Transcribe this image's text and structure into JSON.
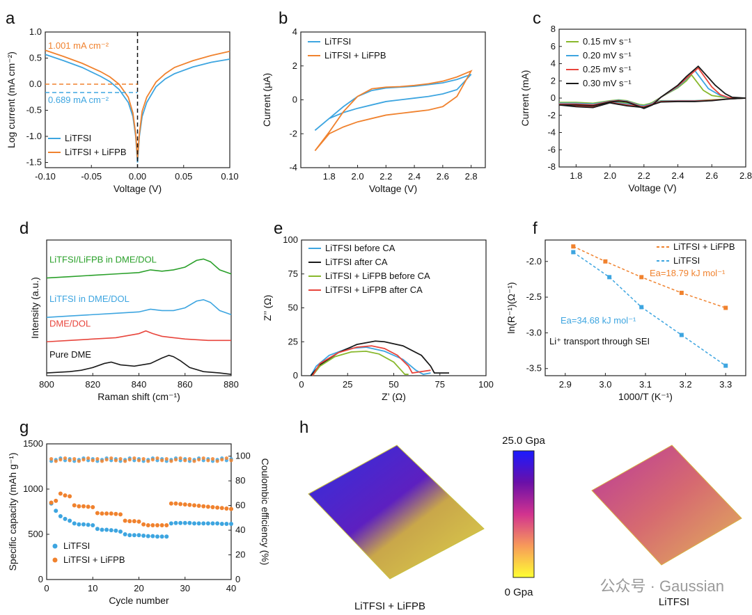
{
  "colors": {
    "blue": "#3da5e0",
    "orange": "#f0822e",
    "black": "#1a1a1a",
    "green": "#2aa02a",
    "red": "#e8453c",
    "lime": "#88b82c",
    "lightblue": "#3da5e0"
  },
  "panel_labels": [
    "a",
    "b",
    "c",
    "d",
    "e",
    "f",
    "g",
    "h"
  ],
  "chart_data": [
    {
      "panel": "a",
      "type": "line",
      "xlabel": "Voltage (V)",
      "ylabel": "Log current (mA cm⁻²)",
      "xlim": [
        -0.1,
        0.1
      ],
      "ylim": [
        -1.6,
        1.0
      ],
      "xticks": [
        "-0.10",
        "-0.05",
        "0.00",
        "0.05",
        "0.10"
      ],
      "yticks": [
        "-1.5",
        "-1.0",
        "-0.5",
        "0.0",
        "0.5",
        "1.0"
      ],
      "annotations": [
        "1.001 mA cm⁻²",
        "0.689 mA cm⁻²"
      ],
      "series": [
        {
          "name": "LiTFSI",
          "x": [
            -0.1,
            -0.08,
            -0.06,
            -0.04,
            -0.03,
            -0.02,
            -0.01,
            -0.005,
            -0.002,
            0.0,
            0.002,
            0.005,
            0.01,
            0.02,
            0.03,
            0.04,
            0.06,
            0.08,
            0.1
          ],
          "y": [
            0.57,
            0.45,
            0.32,
            0.15,
            0.05,
            -0.1,
            -0.35,
            -0.62,
            -1.0,
            -1.5,
            -1.0,
            -0.62,
            -0.35,
            -0.05,
            0.1,
            0.2,
            0.33,
            0.42,
            0.48
          ]
        },
        {
          "name": "LiTFSI + LiFPB",
          "x": [
            -0.1,
            -0.08,
            -0.06,
            -0.04,
            -0.03,
            -0.02,
            -0.01,
            -0.005,
            -0.002,
            0.0,
            0.002,
            0.005,
            0.01,
            0.02,
            0.03,
            0.04,
            0.06,
            0.08,
            0.1
          ],
          "y": [
            0.65,
            0.53,
            0.4,
            0.24,
            0.14,
            0.0,
            -0.25,
            -0.55,
            -0.95,
            -1.42,
            -0.95,
            -0.52,
            -0.25,
            0.04,
            0.2,
            0.32,
            0.45,
            0.55,
            0.63
          ]
        }
      ]
    },
    {
      "panel": "b",
      "type": "line",
      "xlabel": "Voltage (V)",
      "ylabel": "Current (μA)",
      "xlim": [
        1.6,
        2.9
      ],
      "ylim": [
        -4,
        4
      ],
      "xticks": [
        "1.8",
        "2.0",
        "2.2",
        "2.4",
        "2.6",
        "2.8"
      ],
      "yticks": [
        "-4",
        "-2",
        "0",
        "2",
        "4"
      ],
      "series": [
        {
          "name": "LiTFSI",
          "x": [
            1.7,
            1.8,
            1.9,
            2.0,
            2.1,
            2.2,
            2.3,
            2.4,
            2.5,
            2.6,
            2.7,
            2.8,
            2.7,
            2.6,
            2.5,
            2.4,
            2.3,
            2.2,
            2.1,
            2.0,
            1.9,
            1.8,
            1.7
          ],
          "y": [
            -1.8,
            -1.1,
            -0.4,
            0.2,
            0.55,
            0.7,
            0.75,
            0.8,
            0.9,
            1.0,
            1.2,
            1.5,
            0.6,
            0.35,
            0.2,
            0.1,
            0.0,
            -0.1,
            -0.3,
            -0.5,
            -0.75,
            -1.1,
            -1.8
          ]
        },
        {
          "name": "LiTFSI + LiFPB",
          "x": [
            1.7,
            1.8,
            1.9,
            2.0,
            2.1,
            2.2,
            2.3,
            2.4,
            2.5,
            2.6,
            2.7,
            2.8,
            2.7,
            2.6,
            2.5,
            2.4,
            2.3,
            2.2,
            2.1,
            2.0,
            1.9,
            1.8,
            1.7
          ],
          "y": [
            -3.0,
            -1.9,
            -0.7,
            0.2,
            0.65,
            0.75,
            0.78,
            0.85,
            0.95,
            1.1,
            1.35,
            1.7,
            0.2,
            -0.4,
            -0.6,
            -0.7,
            -0.8,
            -0.9,
            -1.1,
            -1.3,
            -1.6,
            -2.0,
            -3.0
          ]
        }
      ]
    },
    {
      "panel": "c",
      "type": "line",
      "xlabel": "Voltage (V)",
      "ylabel": "Current (mA)",
      "xlim": [
        1.7,
        2.8
      ],
      "ylim": [
        -8,
        8
      ],
      "xticks": [
        "1.8",
        "2.0",
        "2.2",
        "2.4",
        "2.6",
        "2.8"
      ],
      "yticks": [
        "-8",
        "-6",
        "-4",
        "-2",
        "0",
        "2",
        "4",
        "6",
        "8"
      ],
      "series": [
        {
          "name": "0.15 mV s⁻¹",
          "x": [
            1.7,
            1.8,
            1.9,
            2.0,
            2.05,
            2.1,
            2.2,
            2.25,
            2.3,
            2.4,
            2.45,
            2.48,
            2.55,
            2.6,
            2.7,
            2.8,
            2.7,
            2.6,
            2.5,
            2.4,
            2.3,
            2.2,
            2.1,
            2.0,
            1.9,
            1.8,
            1.7
          ],
          "y": [
            -0.5,
            -0.5,
            -0.6,
            -0.3,
            -0.2,
            -0.3,
            -0.9,
            -0.5,
            0.1,
            1.2,
            2.0,
            2.7,
            0.9,
            0.3,
            0.0,
            0.0,
            -0.1,
            -0.2,
            -0.3,
            -0.3,
            -0.3,
            -0.8,
            -0.6,
            -0.4,
            -0.8,
            -0.7,
            -0.5
          ]
        },
        {
          "name": "0.20 mV s⁻¹",
          "x": [
            1.7,
            1.8,
            1.9,
            2.0,
            2.05,
            2.1,
            2.2,
            2.25,
            2.3,
            2.4,
            2.45,
            2.5,
            2.58,
            2.65,
            2.7,
            2.8,
            2.7,
            2.6,
            2.5,
            2.4,
            2.3,
            2.2,
            2.1,
            2.0,
            1.9,
            1.8,
            1.7
          ],
          "y": [
            -0.6,
            -0.6,
            -0.7,
            -0.35,
            -0.25,
            -0.35,
            -1.0,
            -0.6,
            0.1,
            1.3,
            2.2,
            3.2,
            1.1,
            0.3,
            0.0,
            0.0,
            -0.1,
            -0.25,
            -0.3,
            -0.3,
            -0.35,
            -0.9,
            -0.7,
            -0.45,
            -0.9,
            -0.8,
            -0.6
          ]
        },
        {
          "name": "0.25 mV s⁻¹",
          "x": [
            1.7,
            1.8,
            1.9,
            2.0,
            2.05,
            2.1,
            2.2,
            2.25,
            2.3,
            2.4,
            2.45,
            2.52,
            2.6,
            2.65,
            2.7,
            2.8,
            2.7,
            2.6,
            2.5,
            2.4,
            2.3,
            2.2,
            2.1,
            2.0,
            1.9,
            1.8,
            1.7
          ],
          "y": [
            -0.7,
            -0.7,
            -0.8,
            -0.4,
            -0.3,
            -0.4,
            -1.1,
            -0.7,
            0.1,
            1.4,
            2.3,
            3.5,
            1.3,
            0.4,
            0.05,
            0.0,
            -0.1,
            -0.25,
            -0.35,
            -0.35,
            -0.4,
            -1.0,
            -0.8,
            -0.5,
            -1.0,
            -0.9,
            -0.7
          ]
        },
        {
          "name": "0.30 mV s⁻¹",
          "x": [
            1.7,
            1.8,
            1.9,
            2.0,
            2.05,
            2.1,
            2.2,
            2.25,
            2.3,
            2.4,
            2.45,
            2.52,
            2.62,
            2.68,
            2.72,
            2.8,
            2.7,
            2.6,
            2.5,
            2.4,
            2.3,
            2.2,
            2.1,
            2.0,
            1.9,
            1.8,
            1.7
          ],
          "y": [
            -0.8,
            -0.8,
            -0.9,
            -0.45,
            -0.35,
            -0.45,
            -1.2,
            -0.8,
            0.1,
            1.5,
            2.5,
            3.7,
            1.5,
            0.5,
            0.1,
            0.0,
            -0.1,
            -0.3,
            -0.4,
            -0.4,
            -0.45,
            -1.1,
            -0.9,
            -0.55,
            -1.1,
            -1.0,
            -0.8
          ]
        }
      ]
    },
    {
      "panel": "d",
      "type": "line",
      "xlabel": "Raman shift (cm⁻¹)",
      "ylabel": "Intensity (a.u.)",
      "xlim": [
        800,
        880
      ],
      "xticks": [
        "800",
        "820",
        "840",
        "860",
        "880"
      ],
      "series": [
        {
          "name": "LiTFSI/LiFPB in DME/DOL",
          "x": [
            800,
            810,
            820,
            830,
            840,
            845,
            850,
            855,
            860,
            865,
            868,
            871,
            875,
            880
          ],
          "y": [
            0.72,
            0.73,
            0.74,
            0.75,
            0.76,
            0.78,
            0.77,
            0.78,
            0.8,
            0.85,
            0.86,
            0.84,
            0.78,
            0.75
          ]
        },
        {
          "name": "LiTFSI in DME/DOL",
          "x": [
            800,
            810,
            820,
            830,
            840,
            845,
            850,
            855,
            860,
            865,
            868,
            871,
            875,
            880
          ],
          "y": [
            0.43,
            0.44,
            0.45,
            0.46,
            0.47,
            0.49,
            0.48,
            0.48,
            0.5,
            0.55,
            0.56,
            0.54,
            0.48,
            0.45
          ]
        },
        {
          "name": "DME/DOL",
          "x": [
            800,
            810,
            820,
            830,
            840,
            843,
            846,
            850,
            855,
            860,
            870,
            880
          ],
          "y": [
            0.25,
            0.26,
            0.27,
            0.28,
            0.31,
            0.33,
            0.31,
            0.29,
            0.28,
            0.27,
            0.26,
            0.26
          ]
        },
        {
          "name": "Pure DME",
          "x": [
            800,
            810,
            815,
            820,
            825,
            828,
            832,
            838,
            845,
            850,
            853,
            855,
            858,
            862,
            868,
            875,
            880
          ],
          "y": [
            0.02,
            0.03,
            0.04,
            0.06,
            0.09,
            0.1,
            0.08,
            0.07,
            0.09,
            0.13,
            0.15,
            0.14,
            0.11,
            0.06,
            0.03,
            0.02,
            0.01
          ]
        }
      ]
    },
    {
      "panel": "e",
      "type": "line",
      "xlabel": "Z’ (Ω)",
      "ylabel": "Z’’ (Ω)",
      "xlim": [
        0,
        100
      ],
      "ylim": [
        0,
        100
      ],
      "xticks": [
        "0",
        "25",
        "50",
        "75",
        "100"
      ],
      "yticks": [
        "0",
        "25",
        "50",
        "75",
        "100"
      ],
      "series": [
        {
          "name": "LiTFSI before CA",
          "x": [
            5,
            8,
            15,
            25,
            35,
            45,
            55,
            62,
            66,
            70
          ],
          "y": [
            0,
            7,
            15,
            20,
            21,
            18,
            12,
            4,
            1,
            2
          ]
        },
        {
          "name": "LiTFSI after CA",
          "x": [
            5,
            10,
            20,
            30,
            40,
            45,
            55,
            65,
            70,
            72,
            75,
            80
          ],
          "y": [
            0,
            8,
            17,
            23,
            25.5,
            25,
            22,
            15,
            7,
            2,
            2,
            2
          ]
        },
        {
          "name": "LiTFSI + LiFPB before CA",
          "x": [
            6,
            10,
            18,
            27,
            35,
            42,
            50,
            54,
            56,
            58
          ],
          "y": [
            0,
            7,
            14,
            17.5,
            18,
            16,
            10,
            4,
            1,
            1
          ]
        },
        {
          "name": "LiTFSI + LiFPB after CA",
          "x": [
            6,
            10,
            20,
            30,
            38,
            45,
            52,
            58,
            60,
            65,
            70
          ],
          "y": [
            0,
            9,
            17,
            21,
            22,
            20,
            15,
            7,
            2,
            3,
            4
          ]
        }
      ]
    },
    {
      "panel": "f",
      "type": "scatter",
      "xlabel": "1000/T (K⁻¹)",
      "ylabel": "ln(R⁻¹)(Ω⁻¹)",
      "xlim": [
        2.85,
        3.35
      ],
      "ylim": [
        -3.6,
        -1.7
      ],
      "xticks": [
        "2.9",
        "3.0",
        "3.1",
        "3.2",
        "3.3"
      ],
      "yticks": [
        "-3.5",
        "-3.0",
        "-2.5",
        "-2.0"
      ],
      "annotations": [
        "Ea=18.79 kJ mol⁻¹",
        "Ea=34.68 kJ mol⁻¹",
        "Li⁺ transport through SEI"
      ],
      "series": [
        {
          "name": "LiTFSI + LiFPB",
          "x": [
            2.92,
            3.0,
            3.09,
            3.19,
            3.3
          ],
          "y": [
            -1.79,
            -2.0,
            -2.22,
            -2.44,
            -2.65
          ]
        },
        {
          "name": "LiTFSI",
          "x": [
            2.92,
            3.01,
            3.09,
            3.19,
            3.3
          ],
          "y": [
            -1.87,
            -2.22,
            -2.64,
            -3.03,
            -3.46
          ]
        }
      ]
    },
    {
      "panel": "g",
      "type": "scatter",
      "xlabel": "Cycle number",
      "ylabel": "Specific capacity (mAh g⁻¹)",
      "ylabel2": "Coulombic efficiency (%)",
      "xlim": [
        0,
        40
      ],
      "ylim": [
        0,
        1500
      ],
      "ylim2": [
        0,
        110
      ],
      "xticks": [
        "0",
        "10",
        "20",
        "30",
        "40"
      ],
      "yticks": [
        "0",
        "500",
        "1000",
        "1500"
      ],
      "yticks2": [
        "0",
        "20",
        "40",
        "60",
        "80",
        "100"
      ],
      "series": [
        {
          "name": "LiTFSI",
          "x": [
            1,
            2,
            3,
            4,
            5,
            6,
            7,
            8,
            9,
            10,
            11,
            12,
            13,
            14,
            15,
            16,
            17,
            18,
            19,
            20,
            21,
            22,
            23,
            24,
            25,
            26,
            27,
            28,
            29,
            30,
            31,
            32,
            33,
            34,
            35,
            36,
            37,
            38,
            39,
            40
          ],
          "y": [
            840,
            760,
            700,
            670,
            650,
            620,
            610,
            610,
            605,
            600,
            560,
            550,
            550,
            545,
            540,
            530,
            500,
            490,
            490,
            490,
            485,
            480,
            480,
            475,
            475,
            475,
            620,
            625,
            625,
            625,
            625,
            620,
            620,
            620,
            620,
            620,
            620,
            615,
            615,
            615
          ]
        },
        {
          "name": "LiTFSI + LiFPB",
          "x": [
            1,
            2,
            3,
            4,
            5,
            6,
            7,
            8,
            9,
            10,
            11,
            12,
            13,
            14,
            15,
            16,
            17,
            18,
            19,
            20,
            21,
            22,
            23,
            24,
            25,
            26,
            27,
            28,
            29,
            30,
            31,
            32,
            33,
            34,
            35,
            36,
            37,
            38,
            39,
            40
          ],
          "y": [
            850,
            870,
            950,
            930,
            920,
            820,
            810,
            810,
            805,
            800,
            735,
            730,
            730,
            730,
            725,
            720,
            650,
            645,
            645,
            640,
            610,
            600,
            600,
            600,
            600,
            600,
            840,
            840,
            835,
            830,
            825,
            820,
            815,
            810,
            805,
            800,
            795,
            790,
            785,
            780
          ]
        }
      ]
    }
  ],
  "panel_h": {
    "title_left": "LiTFSI + LiFPB",
    "title_right": "LiTFSI",
    "colorbar_max": "25.0 Gpa",
    "colorbar_min": "0 Gpa"
  },
  "watermark": "公众号 · Gaussian"
}
